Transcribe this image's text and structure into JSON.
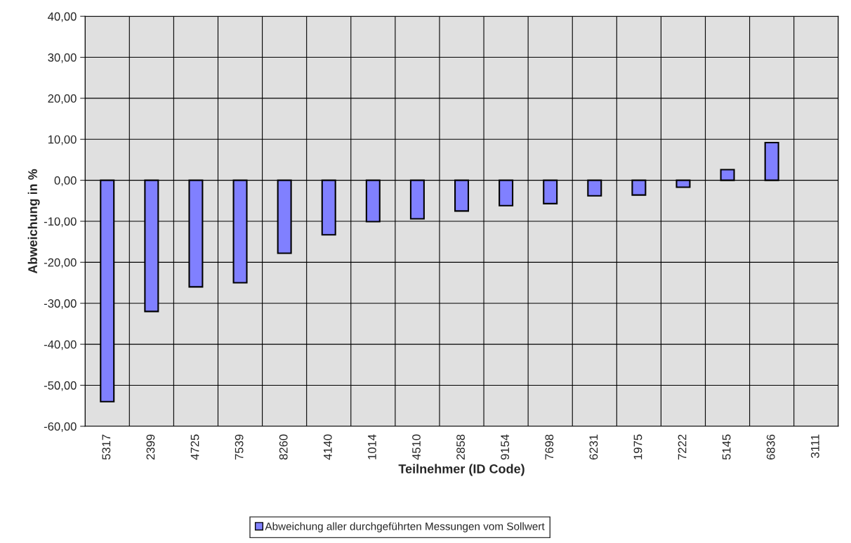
{
  "chart_data": {
    "type": "bar",
    "xlabel": "Teilnehmer (ID Code)",
    "ylabel": "Abweichung in %",
    "categories": [
      "5317",
      "2399",
      "4725",
      "7539",
      "8260",
      "4140",
      "1014",
      "4510",
      "2858",
      "9154",
      "7698",
      "6231",
      "1975",
      "7222",
      "5145",
      "6836",
      "3111"
    ],
    "series": [
      {
        "name": "Abweichung aller durchgeführten Messungen vom Sollwert",
        "color": "#8080ff",
        "values": [
          -54.0,
          -32.0,
          -26.0,
          -25.0,
          -17.8,
          -13.3,
          -10.1,
          -9.4,
          -7.5,
          -6.2,
          -5.7,
          -3.8,
          -3.6,
          -1.7,
          2.6,
          9.2,
          null
        ]
      }
    ],
    "ylim": [
      -60,
      40
    ],
    "yticks": [
      {
        "value": -60,
        "label": "-60,00"
      },
      {
        "value": -50,
        "label": "-50,00"
      },
      {
        "value": -40,
        "label": "-40,00"
      },
      {
        "value": -30,
        "label": "-30,00"
      },
      {
        "value": -20,
        "label": "-20,00"
      },
      {
        "value": -10,
        "label": "-10,00"
      },
      {
        "value": 0,
        "label": "0,00"
      },
      {
        "value": 10,
        "label": "10,00"
      },
      {
        "value": 20,
        "label": "20,00"
      },
      {
        "value": 30,
        "label": "30,00"
      },
      {
        "value": 40,
        "label": "40,00"
      }
    ],
    "grid": true,
    "legend": "bottom"
  }
}
